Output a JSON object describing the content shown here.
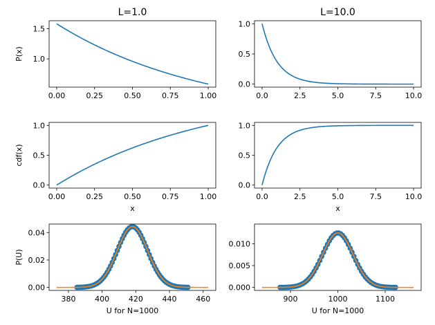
{
  "colors": {
    "curve": "#1f77b4",
    "fit": "#ff7f0e",
    "points": "#1f77b4"
  },
  "chart_data": [
    {
      "id": "pdf-L1",
      "type": "line",
      "title": "L=1.0",
      "xlabel": "",
      "ylabel": "P(x)",
      "function": "exp_pdf",
      "lambda": 1.0,
      "x_range": [
        0,
        1
      ],
      "xlim": [
        -0.05,
        1.05
      ],
      "ylim": [
        0.532,
        1.632
      ],
      "xticks": [
        0,
        0.25,
        0.5,
        0.75,
        1.0
      ],
      "xtick_labels": [
        "0.00",
        "0.25",
        "0.50",
        "0.75",
        "1.00"
      ],
      "yticks": [
        1.0,
        1.5
      ],
      "ytick_labels": [
        "1.0",
        "1.5"
      ]
    },
    {
      "id": "pdf-L10",
      "type": "line",
      "title": "L=10.0",
      "xlabel": "",
      "ylabel": "",
      "function": "exp_pdf",
      "lambda": 10.0,
      "x_range": [
        0,
        10
      ],
      "xlim": [
        -0.5,
        10.5
      ],
      "ylim": [
        -0.05,
        1.05
      ],
      "xticks": [
        0,
        2.5,
        5,
        7.5,
        10
      ],
      "xtick_labels": [
        "0.0",
        "2.5",
        "5.0",
        "7.5",
        "10.0"
      ],
      "yticks": [
        0,
        0.5,
        1.0
      ],
      "ytick_labels": [
        "0.0",
        "0.5",
        "1.0"
      ]
    },
    {
      "id": "cdf-L1",
      "type": "line",
      "title": "",
      "xlabel": "x",
      "ylabel": "cdf(x)",
      "function": "exp_cdf",
      "lambda": 1.0,
      "x_range": [
        0,
        1
      ],
      "xlim": [
        -0.05,
        1.05
      ],
      "ylim": [
        -0.05,
        1.05
      ],
      "xticks": [
        0,
        0.25,
        0.5,
        0.75,
        1.0
      ],
      "xtick_labels": [
        "0.00",
        "0.25",
        "0.50",
        "0.75",
        "1.00"
      ],
      "yticks": [
        0,
        0.5,
        1.0
      ],
      "ytick_labels": [
        "0.0",
        "0.5",
        "1.0"
      ]
    },
    {
      "id": "cdf-L10",
      "type": "line",
      "title": "",
      "xlabel": "x",
      "ylabel": "",
      "function": "exp_cdf",
      "lambda": 10.0,
      "x_range": [
        0,
        10
      ],
      "xlim": [
        -0.5,
        10.5
      ],
      "ylim": [
        -0.05,
        1.05
      ],
      "xticks": [
        0,
        2.5,
        5,
        7.5,
        10
      ],
      "xtick_labels": [
        "0.0",
        "2.5",
        "5.0",
        "7.5",
        "10.0"
      ],
      "yticks": [
        0,
        0.5,
        1.0
      ],
      "ytick_labels": [
        "0.0",
        "0.5",
        "1.0"
      ]
    },
    {
      "id": "hist-L1",
      "type": "scatter",
      "title": "",
      "xlabel": "U for N=1000",
      "ylabel": "P(U)",
      "fit": {
        "mean": 418.0,
        "std": 9.0,
        "x_range": [
          373,
          463
        ]
      },
      "points": {
        "x_start": 385,
        "x_end": 451,
        "step": 1
      },
      "xlim": [
        368.5,
        467.5
      ],
      "ylim": [
        -0.0022,
        0.0462
      ],
      "xticks": [
        380,
        400,
        420,
        440,
        460
      ],
      "xtick_labels": [
        "380",
        "400",
        "420",
        "440",
        "460"
      ],
      "yticks": [
        0,
        0.02,
        0.04
      ],
      "ytick_labels": [
        "0.00",
        "0.02",
        "0.04"
      ]
    },
    {
      "id": "hist-L10",
      "type": "scatter",
      "title": "",
      "xlabel": "U for N=1000",
      "ylabel": "",
      "fit": {
        "mean": 1000.0,
        "std": 32.0,
        "x_range": [
          840,
          1160
        ]
      },
      "points": {
        "x_start": 878,
        "x_end": 1125,
        "step": 4
      },
      "xlim": [
        824,
        1176
      ],
      "ylim": [
        -0.00069,
        0.01449
      ],
      "xticks": [
        900,
        1000,
        1100
      ],
      "xtick_labels": [
        "900",
        "1000",
        "1100"
      ],
      "yticks": [
        0,
        0.005,
        0.01
      ],
      "ytick_labels": [
        "0.000",
        "0.005",
        "0.010"
      ]
    }
  ]
}
